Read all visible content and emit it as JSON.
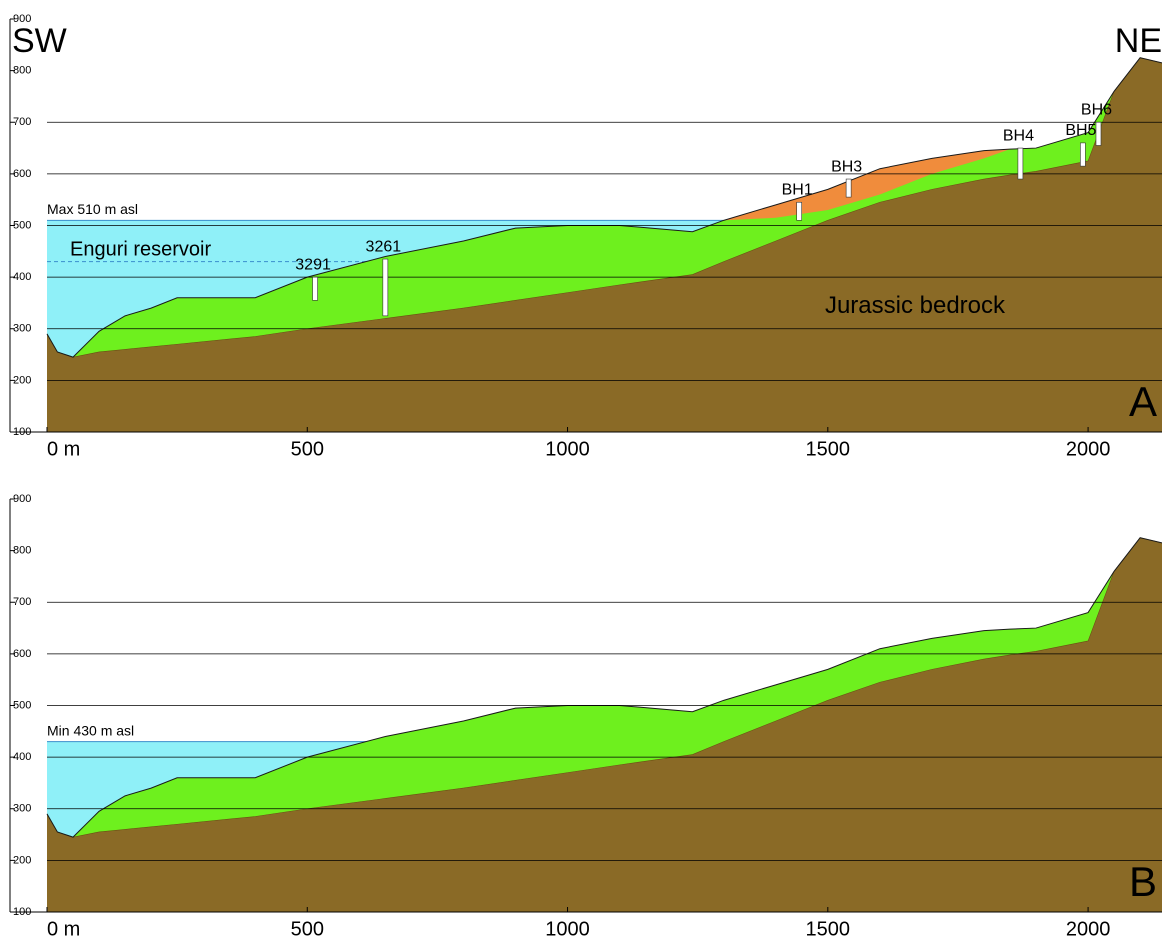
{
  "chart_data": [
    {
      "type": "profile",
      "corner_left": "SW",
      "corner_right": "NE",
      "panel_label": "A",
      "water_label": "Max 510 m asl",
      "reservoir_label": "Enguri reservoir",
      "rock_label": "Jurassic bedrock",
      "xlim": [
        0,
        2142
      ],
      "ylim": [
        100,
        900
      ],
      "xticks": [
        {
          "value": 0,
          "label": "0 m"
        },
        500,
        1000,
        1500,
        2000
      ],
      "yticks": [
        100,
        200,
        300,
        400,
        500,
        600,
        700,
        800,
        900
      ],
      "grid_levels": [
        200,
        300,
        400,
        500,
        600,
        700
      ],
      "water_level": 510,
      "water_x": [
        0,
        1300
      ],
      "dashed_level": 430,
      "water_color": "#8ff0f8",
      "x": [
        0,
        20,
        50,
        100,
        150,
        200,
        250,
        350,
        400,
        500,
        650,
        800,
        900,
        1000,
        1100,
        1240,
        1300,
        1400,
        1500,
        1600,
        1700,
        1800,
        1850,
        1900,
        2000,
        2050,
        2100,
        2142
      ],
      "series": [
        {
          "color": "#6ef01e",
          "values": [
            290,
            255,
            245,
            295,
            325,
            340,
            360,
            360,
            360,
            400,
            440,
            470,
            495,
            500,
            500,
            488,
            510,
            540,
            570,
            610,
            630,
            645,
            648,
            650,
            680,
            760,
            825,
            815
          ]
        },
        {
          "color": "#8a6a26",
          "values": [
            290,
            255,
            245,
            255,
            260,
            265,
            270,
            280,
            285,
            300,
            320,
            340,
            355,
            370,
            385,
            405,
            430,
            470,
            510,
            545,
            570,
            590,
            598,
            605,
            625,
            760,
            825,
            815
          ]
        },
        {
          "color": "#f08c3c",
          "values": [
            null,
            null,
            null,
            null,
            null,
            null,
            null,
            null,
            null,
            null,
            null,
            null,
            null,
            null,
            null,
            null,
            510,
            515,
            530,
            560,
            600,
            630,
            648,
            null,
            null,
            null,
            null,
            null
          ]
        }
      ],
      "boreholes": [
        {
          "label": "3291",
          "x": 515,
          "top": 400,
          "bottom": 355
        },
        {
          "label": "3261",
          "x": 650,
          "top": 435,
          "bottom": 325
        },
        {
          "label": "BH1",
          "x": 1445,
          "top": 545,
          "bottom": 510
        },
        {
          "label": "BH3",
          "x": 1540,
          "top": 590,
          "bottom": 555
        },
        {
          "label": "BH4",
          "x": 1870,
          "top": 650,
          "bottom": 590
        },
        {
          "label": "BH5",
          "x": 1990,
          "top": 660,
          "bottom": 615
        },
        {
          "label": "BH6",
          "x": 2020,
          "top": 700,
          "bottom": 655
        }
      ]
    },
    {
      "type": "profile",
      "panel_label": "B",
      "water_label": "Min 430 m asl",
      "xlim": [
        0,
        2142
      ],
      "ylim": [
        100,
        900
      ],
      "xticks": [
        {
          "value": 0,
          "label": "0 m"
        },
        500,
        1000,
        1500,
        2000
      ],
      "yticks": [
        100,
        200,
        300,
        400,
        500,
        600,
        700,
        800,
        900
      ],
      "grid_levels": [
        200,
        300,
        400,
        500,
        600,
        700
      ],
      "water_level": 430,
      "water_x": [
        0,
        640
      ],
      "water_color": "#8ff0f8",
      "x": [
        0,
        20,
        50,
        100,
        150,
        200,
        250,
        350,
        400,
        500,
        650,
        800,
        900,
        1000,
        1100,
        1240,
        1300,
        1400,
        1500,
        1600,
        1700,
        1800,
        1850,
        1900,
        2000,
        2050,
        2100,
        2142
      ],
      "series": [
        {
          "color": "#6ef01e",
          "values": [
            290,
            255,
            245,
            295,
            325,
            340,
            360,
            360,
            360,
            400,
            440,
            470,
            495,
            500,
            500,
            488,
            510,
            540,
            570,
            610,
            630,
            645,
            648,
            650,
            680,
            760,
            825,
            815
          ]
        },
        {
          "color": "#8a6a26",
          "values": [
            290,
            255,
            245,
            255,
            260,
            265,
            270,
            280,
            285,
            300,
            320,
            340,
            355,
            370,
            385,
            405,
            430,
            470,
            510,
            545,
            570,
            590,
            598,
            605,
            625,
            760,
            825,
            815
          ]
        }
      ]
    }
  ]
}
